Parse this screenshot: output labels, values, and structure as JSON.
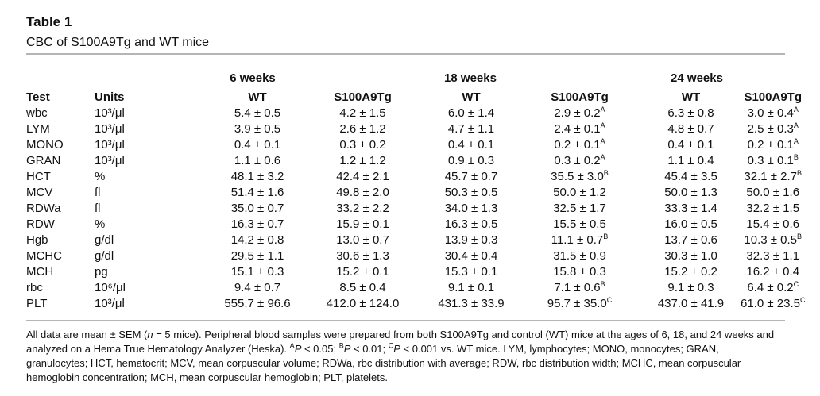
{
  "title": "Table 1",
  "caption": "CBC of S100A9Tg and WT mice",
  "groups": [
    "6 weeks",
    "18 weeks",
    "24 weeks"
  ],
  "columns": [
    "Test",
    "Units",
    "WT",
    "S100A9Tg",
    "WT",
    "S100A9Tg",
    "WT",
    "S100A9Tg"
  ],
  "rows": [
    {
      "test": "wbc",
      "units": "10³/μl",
      "values": [
        {
          "v": "5.4 ± 0.5",
          "s": ""
        },
        {
          "v": "4.2 ± 1.5",
          "s": ""
        },
        {
          "v": "6.0 ± 1.4",
          "s": ""
        },
        {
          "v": "2.9 ± 0.2",
          "s": "A"
        },
        {
          "v": "6.3 ± 0.8",
          "s": ""
        },
        {
          "v": "3.0 ± 0.4",
          "s": "A"
        }
      ]
    },
    {
      "test": "LYM",
      "units": "10³/μl",
      "values": [
        {
          "v": "3.9 ± 0.5",
          "s": ""
        },
        {
          "v": "2.6 ± 1.2",
          "s": ""
        },
        {
          "v": "4.7 ± 1.1",
          "s": ""
        },
        {
          "v": "2.4 ± 0.1",
          "s": "A"
        },
        {
          "v": "4.8 ± 0.7",
          "s": ""
        },
        {
          "v": "2.5 ± 0.3",
          "s": "A"
        }
      ]
    },
    {
      "test": "MONO",
      "units": "10³/μl",
      "values": [
        {
          "v": "0.4 ± 0.1",
          "s": ""
        },
        {
          "v": "0.3 ± 0.2",
          "s": ""
        },
        {
          "v": "0.4 ± 0.1",
          "s": ""
        },
        {
          "v": "0.2 ± 0.1",
          "s": "A"
        },
        {
          "v": "0.4 ± 0.1",
          "s": ""
        },
        {
          "v": "0.2 ± 0.1",
          "s": "A"
        }
      ]
    },
    {
      "test": "GRAN",
      "units": "10³/μl",
      "values": [
        {
          "v": "1.1 ± 0.6",
          "s": ""
        },
        {
          "v": "1.2 ± 1.2",
          "s": ""
        },
        {
          "v": "0.9 ± 0.3",
          "s": ""
        },
        {
          "v": "0.3 ± 0.2",
          "s": "A"
        },
        {
          "v": "1.1 ± 0.4",
          "s": ""
        },
        {
          "v": "0.3 ± 0.1",
          "s": "B"
        }
      ]
    },
    {
      "test": "HCT",
      "units": "%",
      "values": [
        {
          "v": "48.1 ± 3.2",
          "s": ""
        },
        {
          "v": "42.4 ± 2.1",
          "s": ""
        },
        {
          "v": "45.7 ± 0.7",
          "s": ""
        },
        {
          "v": "35.5 ± 3.0",
          "s": "B"
        },
        {
          "v": "45.4 ± 3.5",
          "s": ""
        },
        {
          "v": "32.1 ± 2.7",
          "s": "B"
        }
      ]
    },
    {
      "test": "MCV",
      "units": "fl",
      "values": [
        {
          "v": "51.4 ± 1.6",
          "s": ""
        },
        {
          "v": "49.8 ± 2.0",
          "s": ""
        },
        {
          "v": "50.3 ± 0.5",
          "s": ""
        },
        {
          "v": "50.0 ± 1.2",
          "s": ""
        },
        {
          "v": "50.0 ± 1.3",
          "s": ""
        },
        {
          "v": "50.0 ± 1.6",
          "s": ""
        }
      ]
    },
    {
      "test": "RDWa",
      "units": "fl",
      "values": [
        {
          "v": "35.0 ± 0.7",
          "s": ""
        },
        {
          "v": "33.2 ± 2.2",
          "s": ""
        },
        {
          "v": "34.0 ± 1.3",
          "s": ""
        },
        {
          "v": "32.5 ± 1.7",
          "s": ""
        },
        {
          "v": "33.3 ± 1.4",
          "s": ""
        },
        {
          "v": "32.2 ± 1.5",
          "s": ""
        }
      ]
    },
    {
      "test": "RDW",
      "units": "%",
      "values": [
        {
          "v": "16.3 ± 0.7",
          "s": ""
        },
        {
          "v": "15.9 ± 0.1",
          "s": ""
        },
        {
          "v": "16.3 ± 0.5",
          "s": ""
        },
        {
          "v": "15.5 ± 0.5",
          "s": ""
        },
        {
          "v": "16.0 ± 0.5",
          "s": ""
        },
        {
          "v": "15.4 ± 0.6",
          "s": ""
        }
      ]
    },
    {
      "test": "Hgb",
      "units": "g/dl",
      "values": [
        {
          "v": "14.2 ± 0.8",
          "s": ""
        },
        {
          "v": "13.0 ± 0.7",
          "s": ""
        },
        {
          "v": "13.9 ± 0.3",
          "s": ""
        },
        {
          "v": "11.1 ± 0.7",
          "s": "B"
        },
        {
          "v": "13.7 ± 0.6",
          "s": ""
        },
        {
          "v": "10.3 ± 0.5",
          "s": "B"
        }
      ]
    },
    {
      "test": "MCHC",
      "units": "g/dl",
      "values": [
        {
          "v": "29.5 ± 1.1",
          "s": ""
        },
        {
          "v": "30.6 ± 1.3",
          "s": ""
        },
        {
          "v": "30.4 ± 0.4",
          "s": ""
        },
        {
          "v": "31.5 ± 0.9",
          "s": ""
        },
        {
          "v": "30.3 ± 1.0",
          "s": ""
        },
        {
          "v": "32.3 ± 1.1",
          "s": ""
        }
      ]
    },
    {
      "test": "MCH",
      "units": "pg",
      "values": [
        {
          "v": "15.1 ± 0.3",
          "s": ""
        },
        {
          "v": "15.2 ± 0.1",
          "s": ""
        },
        {
          "v": "15.3 ± 0.1",
          "s": ""
        },
        {
          "v": "15.8 ± 0.3",
          "s": ""
        },
        {
          "v": "15.2 ± 0.2",
          "s": ""
        },
        {
          "v": "16.2 ± 0.4",
          "s": ""
        }
      ]
    },
    {
      "test": "rbc",
      "units": "10⁶/μl",
      "values": [
        {
          "v": "9.4 ± 0.7",
          "s": ""
        },
        {
          "v": "8.5 ± 0.4",
          "s": ""
        },
        {
          "v": "9.1 ± 0.1",
          "s": ""
        },
        {
          "v": "7.1 ± 0.6",
          "s": "B"
        },
        {
          "v": "9.1 ± 0.3",
          "s": ""
        },
        {
          "v": "6.4 ± 0.2",
          "s": "C"
        }
      ]
    },
    {
      "test": "PLT",
      "units": "10³/μl",
      "values": [
        {
          "v": "555.7 ± 96.6",
          "s": ""
        },
        {
          "v": "412.0 ± 124.0",
          "s": ""
        },
        {
          "v": "431.3 ± 33.9",
          "s": ""
        },
        {
          "v": "95.7 ± 35.0",
          "s": "C"
        },
        {
          "v": "437.0 ± 41.9",
          "s": ""
        },
        {
          "v": "61.0 ± 23.5",
          "s": "C"
        }
      ]
    }
  ],
  "footnote": {
    "p1": "All data are mean ± SEM (",
    "n": "n",
    "p2": " = 5 mice). Peripheral blood samples were prepared from both S100A9Tg and control (WT) mice at the ages of 6, 18, and 24 weeks and analyzed on a Hema True Hematology Analyzer (Heska). ",
    "sA": "A",
    "pv": "P",
    "tA": " < 0.05; ",
    "sB": "B",
    "tB": " < 0.01; ",
    "sC": "C",
    "tC": " < 0.001 vs. WT mice. LYM, lymphocytes; MONO, monocytes; GRAN, granulocytes; HCT, hematocrit; MCV, mean corpuscular volume; RDWa, rbc distribution with average; RDW, rbc distribution width; MCHC, mean corpuscular hemoglobin concentration; MCH, mean corpuscular hemoglobin; PLT, platelets."
  }
}
